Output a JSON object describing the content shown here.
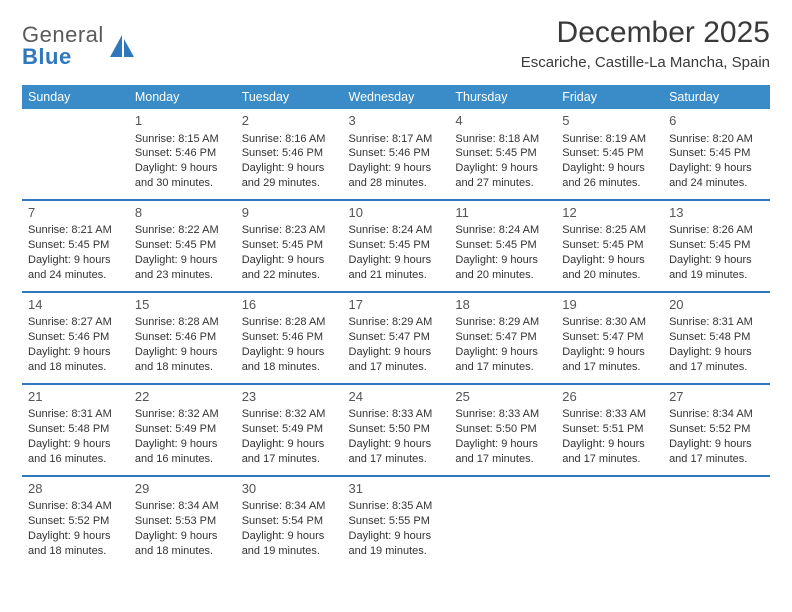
{
  "brand": {
    "word1": "General",
    "word2": "Blue"
  },
  "title": "December 2025",
  "location": "Escariche, Castille-La Mancha, Spain",
  "colors": {
    "header_bar": "#3a8cc9",
    "row_divider": "#2f78bd",
    "brand_blue": "#2f78bd",
    "text": "#333333",
    "background": "#ffffff"
  },
  "weekdays": [
    "Sunday",
    "Monday",
    "Tuesday",
    "Wednesday",
    "Thursday",
    "Friday",
    "Saturday"
  ],
  "weeks": [
    [
      null,
      {
        "n": "1",
        "sr": "Sunrise: 8:15 AM",
        "ss": "Sunset: 5:46 PM",
        "d1": "Daylight: 9 hours",
        "d2": "and 30 minutes."
      },
      {
        "n": "2",
        "sr": "Sunrise: 8:16 AM",
        "ss": "Sunset: 5:46 PM",
        "d1": "Daylight: 9 hours",
        "d2": "and 29 minutes."
      },
      {
        "n": "3",
        "sr": "Sunrise: 8:17 AM",
        "ss": "Sunset: 5:46 PM",
        "d1": "Daylight: 9 hours",
        "d2": "and 28 minutes."
      },
      {
        "n": "4",
        "sr": "Sunrise: 8:18 AM",
        "ss": "Sunset: 5:45 PM",
        "d1": "Daylight: 9 hours",
        "d2": "and 27 minutes."
      },
      {
        "n": "5",
        "sr": "Sunrise: 8:19 AM",
        "ss": "Sunset: 5:45 PM",
        "d1": "Daylight: 9 hours",
        "d2": "and 26 minutes."
      },
      {
        "n": "6",
        "sr": "Sunrise: 8:20 AM",
        "ss": "Sunset: 5:45 PM",
        "d1": "Daylight: 9 hours",
        "d2": "and 24 minutes."
      }
    ],
    [
      {
        "n": "7",
        "sr": "Sunrise: 8:21 AM",
        "ss": "Sunset: 5:45 PM",
        "d1": "Daylight: 9 hours",
        "d2": "and 24 minutes."
      },
      {
        "n": "8",
        "sr": "Sunrise: 8:22 AM",
        "ss": "Sunset: 5:45 PM",
        "d1": "Daylight: 9 hours",
        "d2": "and 23 minutes."
      },
      {
        "n": "9",
        "sr": "Sunrise: 8:23 AM",
        "ss": "Sunset: 5:45 PM",
        "d1": "Daylight: 9 hours",
        "d2": "and 22 minutes."
      },
      {
        "n": "10",
        "sr": "Sunrise: 8:24 AM",
        "ss": "Sunset: 5:45 PM",
        "d1": "Daylight: 9 hours",
        "d2": "and 21 minutes."
      },
      {
        "n": "11",
        "sr": "Sunrise: 8:24 AM",
        "ss": "Sunset: 5:45 PM",
        "d1": "Daylight: 9 hours",
        "d2": "and 20 minutes."
      },
      {
        "n": "12",
        "sr": "Sunrise: 8:25 AM",
        "ss": "Sunset: 5:45 PM",
        "d1": "Daylight: 9 hours",
        "d2": "and 20 minutes."
      },
      {
        "n": "13",
        "sr": "Sunrise: 8:26 AM",
        "ss": "Sunset: 5:45 PM",
        "d1": "Daylight: 9 hours",
        "d2": "and 19 minutes."
      }
    ],
    [
      {
        "n": "14",
        "sr": "Sunrise: 8:27 AM",
        "ss": "Sunset: 5:46 PM",
        "d1": "Daylight: 9 hours",
        "d2": "and 18 minutes."
      },
      {
        "n": "15",
        "sr": "Sunrise: 8:28 AM",
        "ss": "Sunset: 5:46 PM",
        "d1": "Daylight: 9 hours",
        "d2": "and 18 minutes."
      },
      {
        "n": "16",
        "sr": "Sunrise: 8:28 AM",
        "ss": "Sunset: 5:46 PM",
        "d1": "Daylight: 9 hours",
        "d2": "and 18 minutes."
      },
      {
        "n": "17",
        "sr": "Sunrise: 8:29 AM",
        "ss": "Sunset: 5:47 PM",
        "d1": "Daylight: 9 hours",
        "d2": "and 17 minutes."
      },
      {
        "n": "18",
        "sr": "Sunrise: 8:29 AM",
        "ss": "Sunset: 5:47 PM",
        "d1": "Daylight: 9 hours",
        "d2": "and 17 minutes."
      },
      {
        "n": "19",
        "sr": "Sunrise: 8:30 AM",
        "ss": "Sunset: 5:47 PM",
        "d1": "Daylight: 9 hours",
        "d2": "and 17 minutes."
      },
      {
        "n": "20",
        "sr": "Sunrise: 8:31 AM",
        "ss": "Sunset: 5:48 PM",
        "d1": "Daylight: 9 hours",
        "d2": "and 17 minutes."
      }
    ],
    [
      {
        "n": "21",
        "sr": "Sunrise: 8:31 AM",
        "ss": "Sunset: 5:48 PM",
        "d1": "Daylight: 9 hours",
        "d2": "and 16 minutes."
      },
      {
        "n": "22",
        "sr": "Sunrise: 8:32 AM",
        "ss": "Sunset: 5:49 PM",
        "d1": "Daylight: 9 hours",
        "d2": "and 16 minutes."
      },
      {
        "n": "23",
        "sr": "Sunrise: 8:32 AM",
        "ss": "Sunset: 5:49 PM",
        "d1": "Daylight: 9 hours",
        "d2": "and 17 minutes."
      },
      {
        "n": "24",
        "sr": "Sunrise: 8:33 AM",
        "ss": "Sunset: 5:50 PM",
        "d1": "Daylight: 9 hours",
        "d2": "and 17 minutes."
      },
      {
        "n": "25",
        "sr": "Sunrise: 8:33 AM",
        "ss": "Sunset: 5:50 PM",
        "d1": "Daylight: 9 hours",
        "d2": "and 17 minutes."
      },
      {
        "n": "26",
        "sr": "Sunrise: 8:33 AM",
        "ss": "Sunset: 5:51 PM",
        "d1": "Daylight: 9 hours",
        "d2": "and 17 minutes."
      },
      {
        "n": "27",
        "sr": "Sunrise: 8:34 AM",
        "ss": "Sunset: 5:52 PM",
        "d1": "Daylight: 9 hours",
        "d2": "and 17 minutes."
      }
    ],
    [
      {
        "n": "28",
        "sr": "Sunrise: 8:34 AM",
        "ss": "Sunset: 5:52 PM",
        "d1": "Daylight: 9 hours",
        "d2": "and 18 minutes."
      },
      {
        "n": "29",
        "sr": "Sunrise: 8:34 AM",
        "ss": "Sunset: 5:53 PM",
        "d1": "Daylight: 9 hours",
        "d2": "and 18 minutes."
      },
      {
        "n": "30",
        "sr": "Sunrise: 8:34 AM",
        "ss": "Sunset: 5:54 PM",
        "d1": "Daylight: 9 hours",
        "d2": "and 19 minutes."
      },
      {
        "n": "31",
        "sr": "Sunrise: 8:35 AM",
        "ss": "Sunset: 5:55 PM",
        "d1": "Daylight: 9 hours",
        "d2": "and 19 minutes."
      },
      null,
      null,
      null
    ]
  ]
}
